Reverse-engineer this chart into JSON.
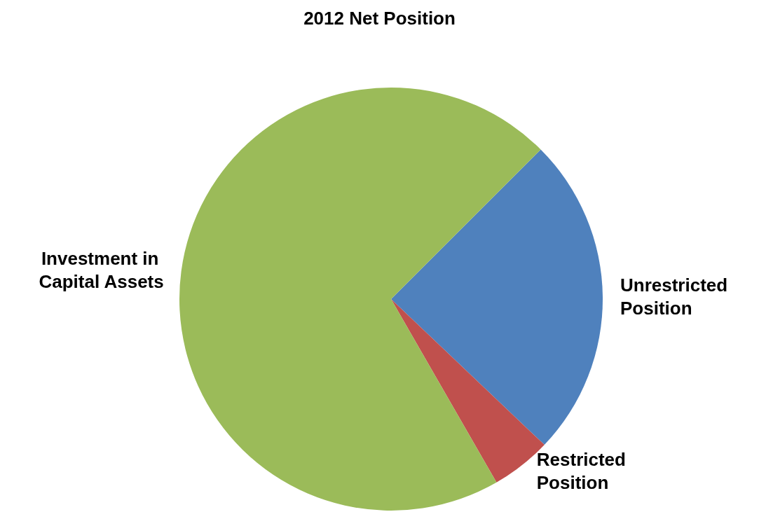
{
  "chart_data": {
    "type": "pie",
    "title": "2012 Net Position",
    "categories": [
      "Unrestricted Position",
      "Restricted Position",
      "Investment in Capital Assets"
    ],
    "values": [
      24.6,
      4.6,
      70.8
    ],
    "colors": [
      "#4f81bd",
      "#c0504d",
      "#9bbb59"
    ],
    "legend": false
  }
}
